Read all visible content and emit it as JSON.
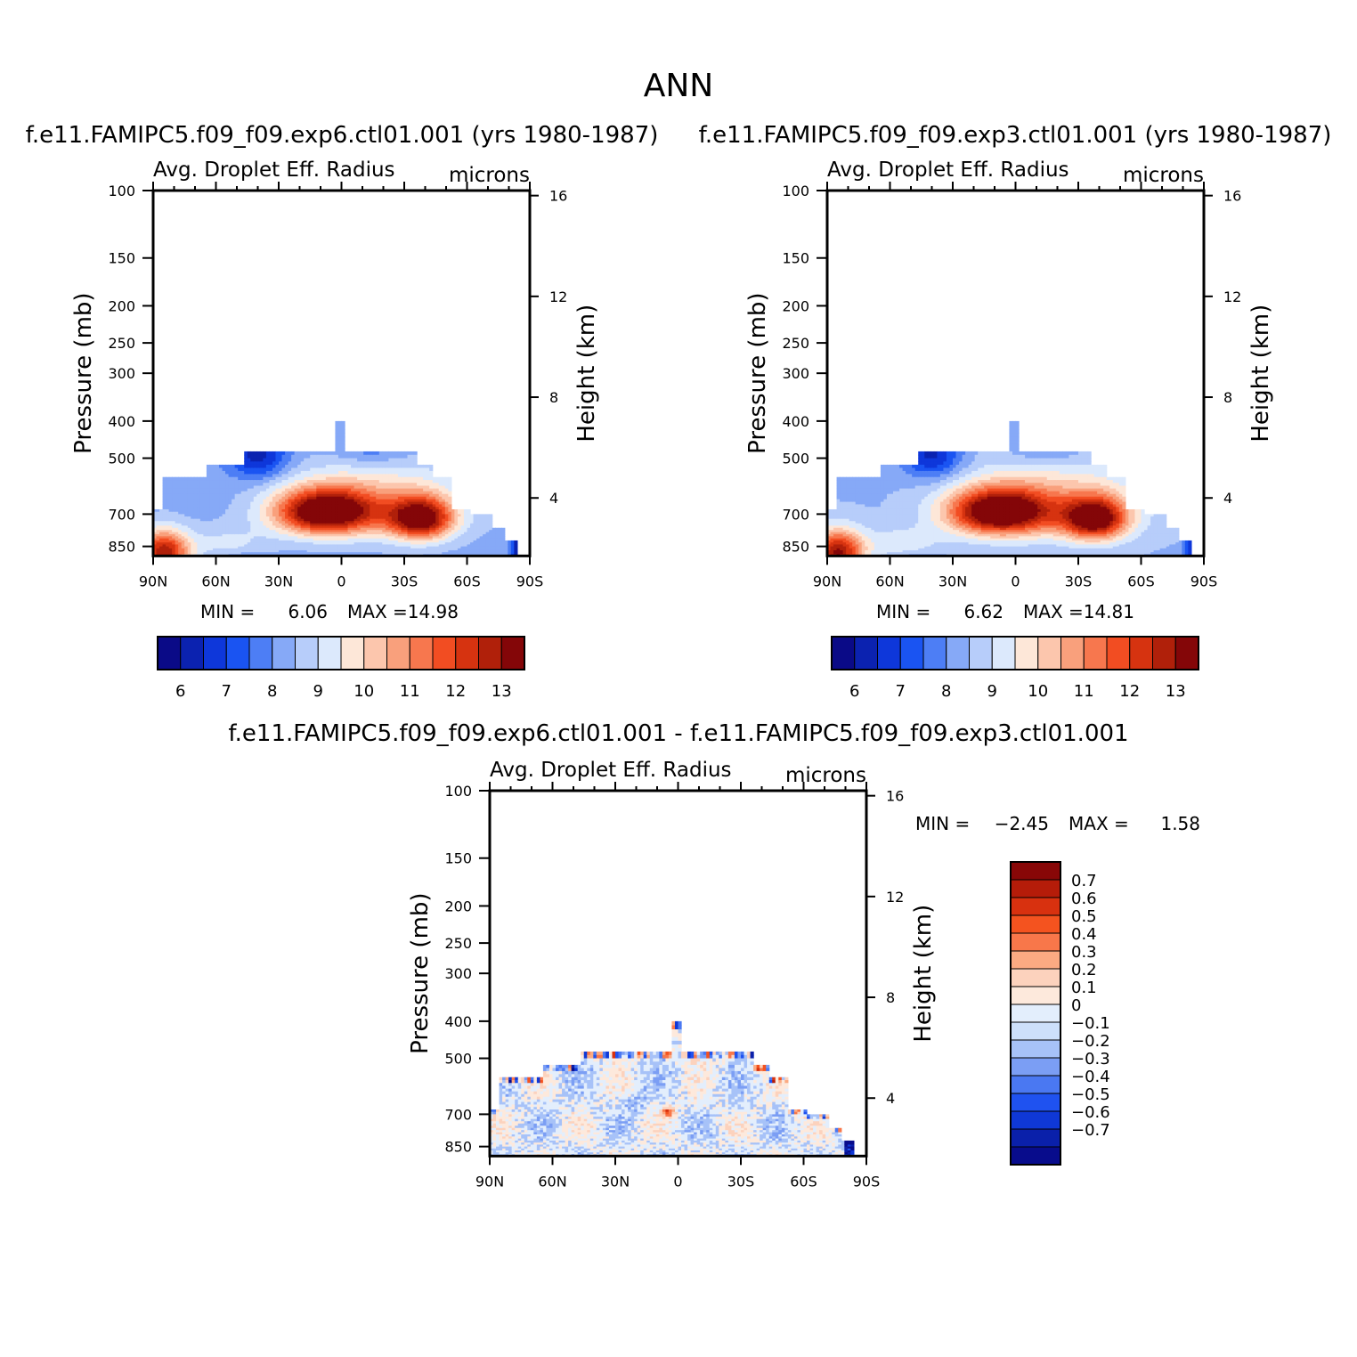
{
  "figure": {
    "title": "ANN"
  },
  "colors": {
    "abs_palette": [
      "#0a0a87",
      "#0b22b0",
      "#0e37da",
      "#1a54f2",
      "#4d7ef5",
      "#86a9f7",
      "#b7cdfa",
      "#dce9fc",
      "#fde7d8",
      "#fcc6ad",
      "#f9a07c",
      "#f7774e",
      "#f24d22",
      "#d63310",
      "#b0200a",
      "#840608"
    ],
    "diff_palette": [
      "#080c8c",
      "#0a20aa",
      "#0f38d6",
      "#1f52f0",
      "#4a78f2",
      "#7b9ef4",
      "#a7c2f8",
      "#cde0fb",
      "#e3eefc",
      "#fde9dc",
      "#fcd2bd",
      "#fbaa82",
      "#f8774a",
      "#f4531f",
      "#d8310f",
      "#b51c09",
      "#880707"
    ]
  },
  "chart_data": [
    {
      "type": "heatmap",
      "title": "f.e11.FAMIPC5.f09_f09.exp6.ctl01.001 (yrs 1980-1987)",
      "subtitle_left": "Avg. Droplet Eff. Radius",
      "subtitle_right": "microns",
      "xlabel": "",
      "ylabel": "Pressure (mb)",
      "ylabel_right": "Height (km)",
      "x_ticks": [
        "90N",
        "60N",
        "30N",
        "0",
        "30S",
        "60S",
        "90S"
      ],
      "y_ticks": [
        "100",
        "150",
        "200",
        "250",
        "300",
        "400",
        "500",
        "700",
        "850"
      ],
      "y_right_ticks": [
        "16",
        "12",
        "8",
        "4"
      ],
      "y_scale": "log",
      "ylim": [
        1000,
        100
      ],
      "min_label": "MIN =",
      "min": "6.06",
      "max_label": "MAX =",
      "max": "14.98",
      "colorbar_ticks": [
        "6",
        "7",
        "8",
        "9",
        "10",
        "11",
        "12",
        "13"
      ],
      "colorbar_levels": [
        6,
        6.5,
        7,
        7.5,
        8,
        8.5,
        9,
        9.5,
        10,
        10.5,
        11,
        11.5,
        12,
        12.5,
        13
      ],
      "field": {
        "top_levels_mb": [
          [
            "88N",
            680
          ],
          [
            "70N",
            560
          ],
          [
            "45N",
            480
          ],
          [
            "30N",
            480
          ],
          [
            "6N",
            400
          ],
          [
            "2S",
            400
          ],
          [
            "10S",
            480
          ],
          [
            "38S",
            480
          ],
          [
            "45S",
            520
          ],
          [
            "52S",
            560
          ],
          [
            "60S",
            680
          ],
          [
            "72S",
            700
          ],
          [
            "80S",
            820
          ],
          [
            "85S",
            860
          ],
          [
            "90S",
            880
          ]
        ],
        "max_center": [
          "8N",
          690
        ],
        "secondary_max_center": [
          "38S",
          720
        ]
      }
    },
    {
      "type": "heatmap",
      "title": "f.e11.FAMIPC5.f09_f09.exp3.ctl01.001 (yrs 1980-1987)",
      "subtitle_left": "Avg. Droplet Eff. Radius",
      "subtitle_right": "microns",
      "xlabel": "",
      "ylabel": "Pressure (mb)",
      "ylabel_right": "Height (km)",
      "x_ticks": [
        "90N",
        "60N",
        "30N",
        "0",
        "30S",
        "60S",
        "90S"
      ],
      "y_ticks": [
        "100",
        "150",
        "200",
        "250",
        "300",
        "400",
        "500",
        "700",
        "850"
      ],
      "y_right_ticks": [
        "16",
        "12",
        "8",
        "4"
      ],
      "y_scale": "log",
      "ylim": [
        1000,
        100
      ],
      "min_label": "MIN =",
      "min": "6.62",
      "max_label": "MAX =",
      "max": "14.81",
      "colorbar_ticks": [
        "6",
        "7",
        "8",
        "9",
        "10",
        "11",
        "12",
        "13"
      ],
      "colorbar_levels": [
        6,
        6.5,
        7,
        7.5,
        8,
        8.5,
        9,
        9.5,
        10,
        10.5,
        11,
        11.5,
        12,
        12.5,
        13
      ],
      "field": {
        "max_center": [
          "8N",
          690
        ],
        "secondary_max_center": [
          "38S",
          720
        ]
      }
    },
    {
      "type": "heatmap",
      "title": "f.e11.FAMIPC5.f09_f09.exp6.ctl01.001 - f.e11.FAMIPC5.f09_f09.exp3.ctl01.001",
      "subtitle_left": "Avg. Droplet Eff. Radius",
      "subtitle_right": "microns",
      "xlabel": "",
      "ylabel": "Pressure (mb)",
      "ylabel_right": "Height (km)",
      "x_ticks": [
        "90N",
        "60N",
        "30N",
        "0",
        "30S",
        "60S",
        "90S"
      ],
      "y_ticks": [
        "100",
        "150",
        "200",
        "250",
        "300",
        "400",
        "500",
        "700",
        "850"
      ],
      "y_right_ticks": [
        "16",
        "12",
        "8",
        "4"
      ],
      "y_scale": "log",
      "ylim": [
        1000,
        100
      ],
      "min_label": "MIN =",
      "min": "-2.45",
      "max_label": "MAX =",
      "max": "1.58",
      "colorbar_ticks": [
        "0.7",
        "0.6",
        "0.5",
        "0.4",
        "0.3",
        "0.2",
        "0.1",
        "0",
        "-0.1",
        "-0.2",
        "-0.3",
        "-0.4",
        "-0.5",
        "-0.6",
        "-0.7"
      ],
      "colorbar_levels": [
        -0.7,
        -0.6,
        -0.5,
        -0.4,
        -0.3,
        -0.2,
        -0.1,
        0,
        0.1,
        0.2,
        0.3,
        0.4,
        0.5,
        0.6,
        0.7
      ]
    }
  ]
}
